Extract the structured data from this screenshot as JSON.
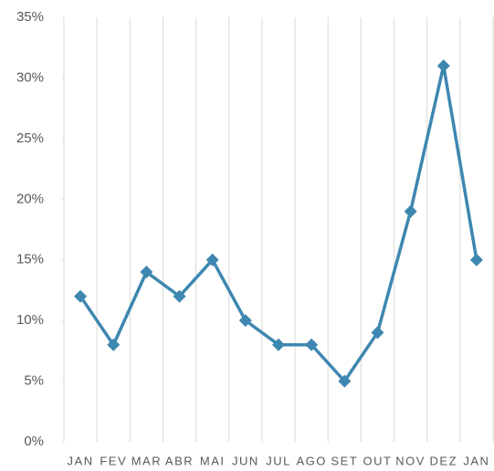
{
  "chart_data": {
    "type": "line",
    "categories": [
      "JAN",
      "FEV",
      "MAR",
      "ABR",
      "MAI",
      "JUN",
      "JUL",
      "AGO",
      "SET",
      "OUT",
      "NOV",
      "DEZ",
      "JAN"
    ],
    "values": [
      12,
      8,
      14,
      12,
      15,
      10,
      8,
      8,
      5,
      9,
      19,
      31,
      15
    ],
    "color": "#3e87b0",
    "ylim": [
      0,
      35
    ],
    "yticks": [
      {
        "value": 0,
        "label": "0%"
      },
      {
        "value": 5,
        "label": "5%"
      },
      {
        "value": 10,
        "label": "10%"
      },
      {
        "value": 15,
        "label": "15%"
      },
      {
        "value": 20,
        "label": "20%"
      },
      {
        "value": 25,
        "label": "25%"
      },
      {
        "value": 30,
        "label": "30%"
      },
      {
        "value": 35,
        "label": "35%"
      }
    ],
    "grid": true
  }
}
